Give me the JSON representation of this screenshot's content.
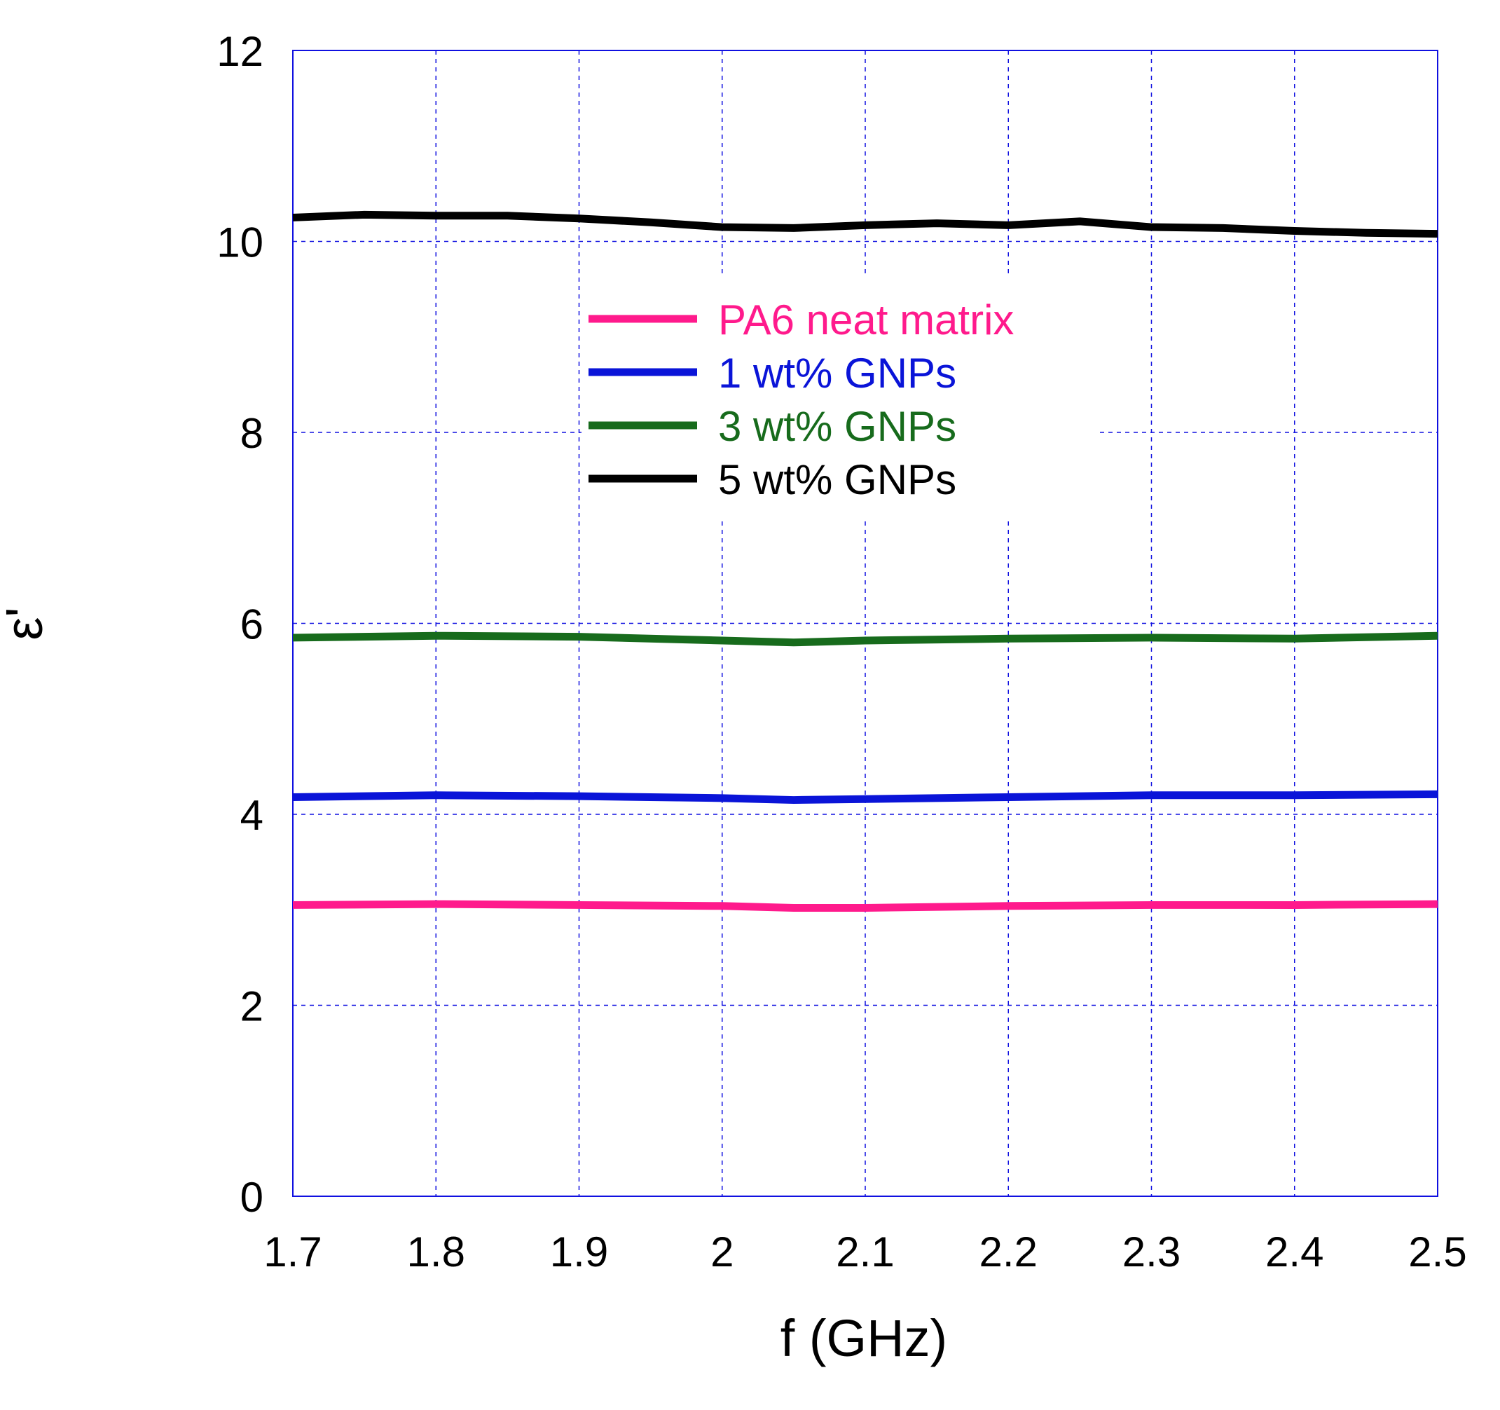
{
  "chart_data": {
    "type": "line",
    "xlabel": "f (GHz)",
    "ylabel": "ε'",
    "xlim": [
      1.7,
      2.5
    ],
    "ylim": [
      0,
      12
    ],
    "xticks": [
      1.7,
      1.8,
      1.9,
      2,
      2.1,
      2.2,
      2.3,
      2.4,
      2.5
    ],
    "xtick_labels": [
      "1.7",
      "1.8",
      "1.9",
      "2",
      "2.1",
      "2.2",
      "2.3",
      "2.4",
      "2.5"
    ],
    "yticks": [
      0,
      2,
      4,
      6,
      8,
      10,
      12
    ],
    "ytick_labels": [
      "0",
      "2",
      "4",
      "6",
      "8",
      "10",
      "12"
    ],
    "grid": true,
    "legend_position": "upper-center",
    "series": [
      {
        "name": "PA6 neat matrix",
        "color": "#ff1a8c",
        "x": [
          1.7,
          1.8,
          1.9,
          2.0,
          2.05,
          2.1,
          2.2,
          2.3,
          2.4,
          2.5
        ],
        "y": [
          3.05,
          3.06,
          3.05,
          3.04,
          3.02,
          3.02,
          3.04,
          3.05,
          3.05,
          3.06
        ]
      },
      {
        "name": "1 wt% GNPs",
        "color": "#0a14d8",
        "x": [
          1.7,
          1.8,
          1.9,
          2.0,
          2.05,
          2.1,
          2.2,
          2.3,
          2.4,
          2.5
        ],
        "y": [
          4.18,
          4.2,
          4.19,
          4.17,
          4.15,
          4.16,
          4.18,
          4.2,
          4.2,
          4.21
        ]
      },
      {
        "name": "3 wt% GNPs",
        "color": "#176b1c",
        "x": [
          1.7,
          1.8,
          1.9,
          2.0,
          2.05,
          2.1,
          2.2,
          2.3,
          2.4,
          2.5
        ],
        "y": [
          5.85,
          5.87,
          5.86,
          5.82,
          5.8,
          5.82,
          5.84,
          5.85,
          5.84,
          5.87
        ]
      },
      {
        "name": "5 wt% GNPs",
        "color": "#000000",
        "x": [
          1.7,
          1.75,
          1.8,
          1.85,
          1.9,
          1.95,
          2.0,
          2.05,
          2.1,
          2.15,
          2.2,
          2.25,
          2.3,
          2.35,
          2.4,
          2.45,
          2.5
        ],
        "y": [
          10.25,
          10.28,
          10.27,
          10.27,
          10.24,
          10.2,
          10.15,
          10.14,
          10.17,
          10.19,
          10.17,
          10.21,
          10.15,
          10.14,
          10.11,
          10.09,
          10.08
        ]
      }
    ]
  }
}
